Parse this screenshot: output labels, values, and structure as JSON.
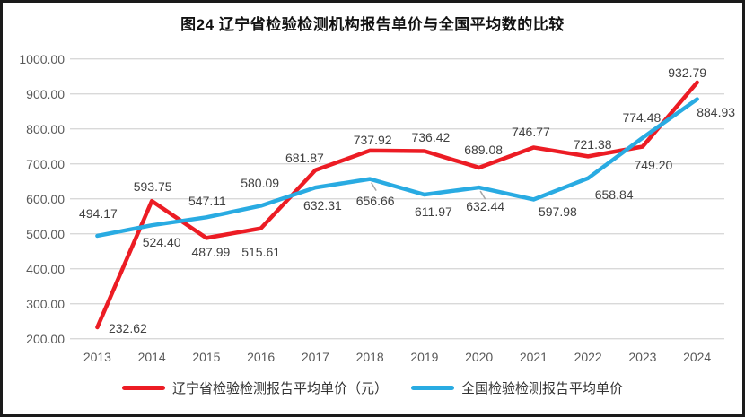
{
  "title": "图24 辽宁省检验检测机构报告单价与全国平均数的比较",
  "chart_data": {
    "type": "line",
    "title": "图24 辽宁省检验检测机构报告单价与全国平均数的比较",
    "categories": [
      "2013",
      "2014",
      "2015",
      "2016",
      "2017",
      "2018",
      "2019",
      "2020",
      "2021",
      "2022",
      "2023",
      "2024"
    ],
    "series": [
      {
        "name": "辽宁省检验检测报告平均单价（元）",
        "color": "#ec1c24",
        "values": [
          232.62,
          593.75,
          487.99,
          515.61,
          681.87,
          737.92,
          736.42,
          689.08,
          746.77,
          721.38,
          749.2,
          932.79
        ]
      },
      {
        "name": "全国检验检测报告平均单价",
        "color": "#29abe2",
        "values": [
          494.17,
          524.4,
          547.11,
          580.09,
          632.31,
          656.66,
          611.97,
          632.44,
          597.98,
          658.84,
          774.48,
          884.93
        ]
      }
    ],
    "ylim": [
      200,
      1000
    ],
    "ytick_interval": 100,
    "ytick_labels": [
      "200.00",
      "300.00",
      "400.00",
      "500.00",
      "600.00",
      "700.00",
      "800.00",
      "900.00",
      "1000.00"
    ],
    "data_labels": true,
    "label_decimals": 2,
    "grid": true,
    "legend_position": "bottom"
  },
  "colors": {
    "grid": "#d9d9d9",
    "tick_text": "#595959",
    "data_label_text": "#404040",
    "legend_text": "#333333",
    "title_text": "#111111",
    "frame_border": "#1a1a1a",
    "leader_line": "#a6a6a6",
    "background": "#ffffff"
  }
}
